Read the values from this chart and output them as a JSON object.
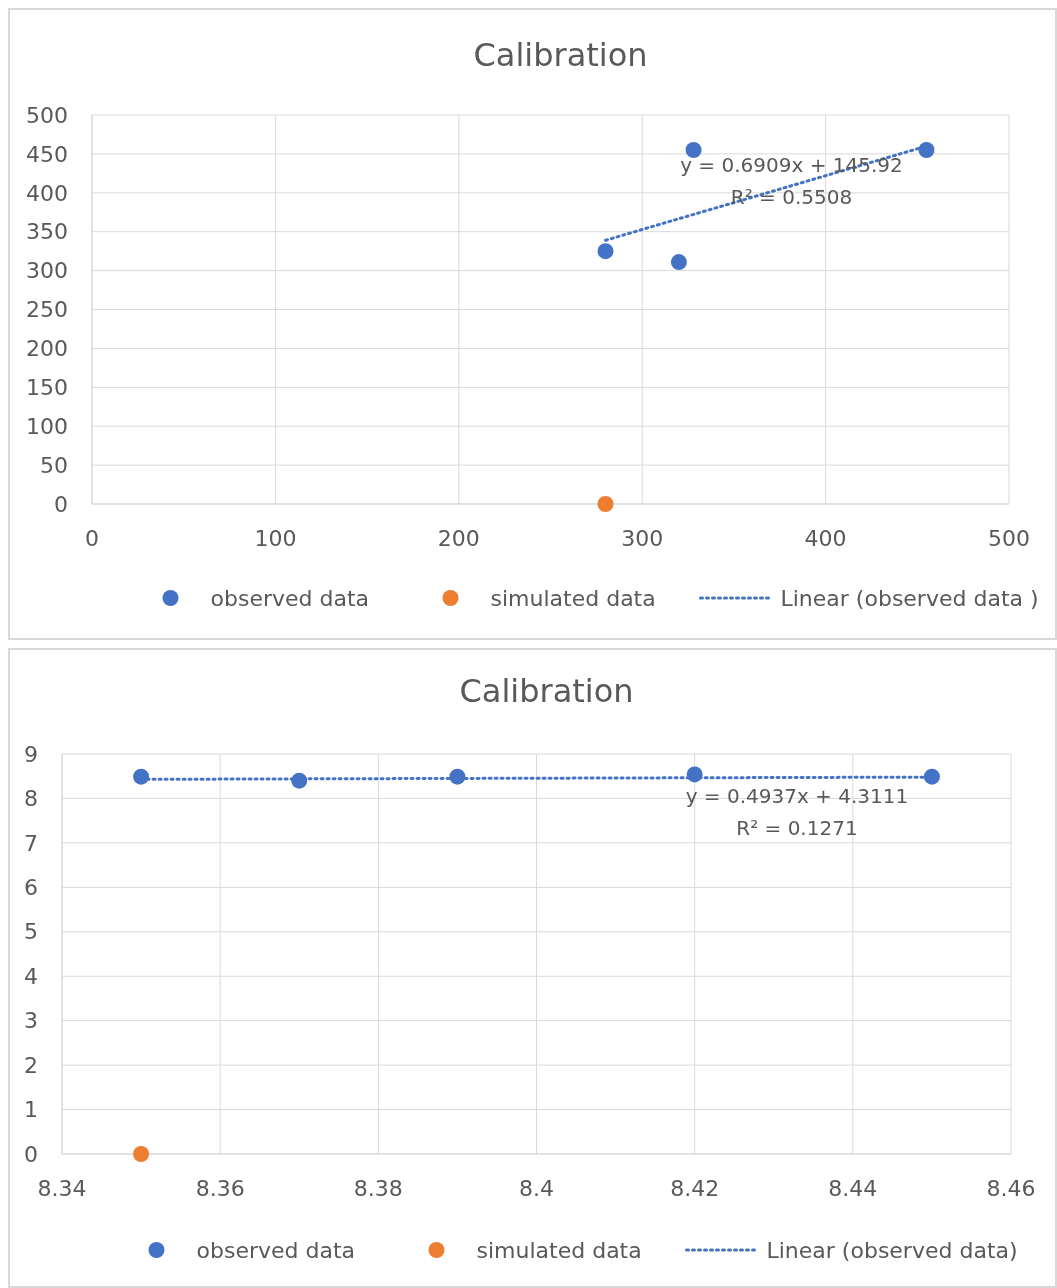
{
  "chart_data": [
    {
      "type": "scatter",
      "title": "Calibration",
      "xlim": [
        0,
        500
      ],
      "xticks": [
        0,
        100,
        200,
        300,
        400,
        500
      ],
      "ylim": [
        0,
        500
      ],
      "yticks": [
        0,
        50,
        100,
        150,
        200,
        250,
        300,
        350,
        400,
        450,
        500
      ],
      "grid": true,
      "legend": "bottom",
      "marker": "circle",
      "annotations": [
        "y = 0.6909x + 145.92",
        "R² = 0.5508"
      ],
      "series": [
        {
          "name": "observed data",
          "color": "#4472c4",
          "x": [
            280,
            328,
            320,
            455
          ],
          "values": [
            325,
            455,
            311,
            455
          ]
        },
        {
          "name": "simulated data",
          "color": "#ed7d31",
          "x": [
            280
          ],
          "values": [
            0
          ]
        },
        {
          "name": "Linear (observed data )",
          "type": "line",
          "line_style": "dotted",
          "marker": "none",
          "color": "#4472c4",
          "x": [
            280,
            455
          ],
          "values": [
            339,
            460
          ]
        }
      ]
    },
    {
      "type": "scatter",
      "title": "Calibration",
      "xlim": [
        8.34,
        8.46
      ],
      "xticks": [
        8.34,
        8.36,
        8.38,
        8.4,
        8.42,
        8.44,
        8.46
      ],
      "ylim": [
        0,
        9
      ],
      "yticks": [
        0,
        1,
        2,
        3,
        4,
        5,
        6,
        7,
        8,
        9
      ],
      "grid": true,
      "legend": "bottom",
      "marker": "circle",
      "annotations": [
        "y = 0.4937x + 4.3111",
        "R² = 0.1271"
      ],
      "series": [
        {
          "name": "observed data",
          "color": "#4472c4",
          "x": [
            8.35,
            8.37,
            8.39,
            8.42,
            8.45
          ],
          "values": [
            8.49,
            8.4,
            8.49,
            8.54,
            8.49
          ]
        },
        {
          "name": "simulated data",
          "color": "#ed7d31",
          "x": [
            8.35
          ],
          "values": [
            0
          ]
        },
        {
          "name": "Linear (observed data)",
          "type": "line",
          "line_style": "dotted",
          "marker": "none",
          "color": "#4472c4",
          "x": [
            8.35,
            8.45
          ],
          "values": [
            8.43,
            8.48
          ]
        }
      ]
    }
  ]
}
